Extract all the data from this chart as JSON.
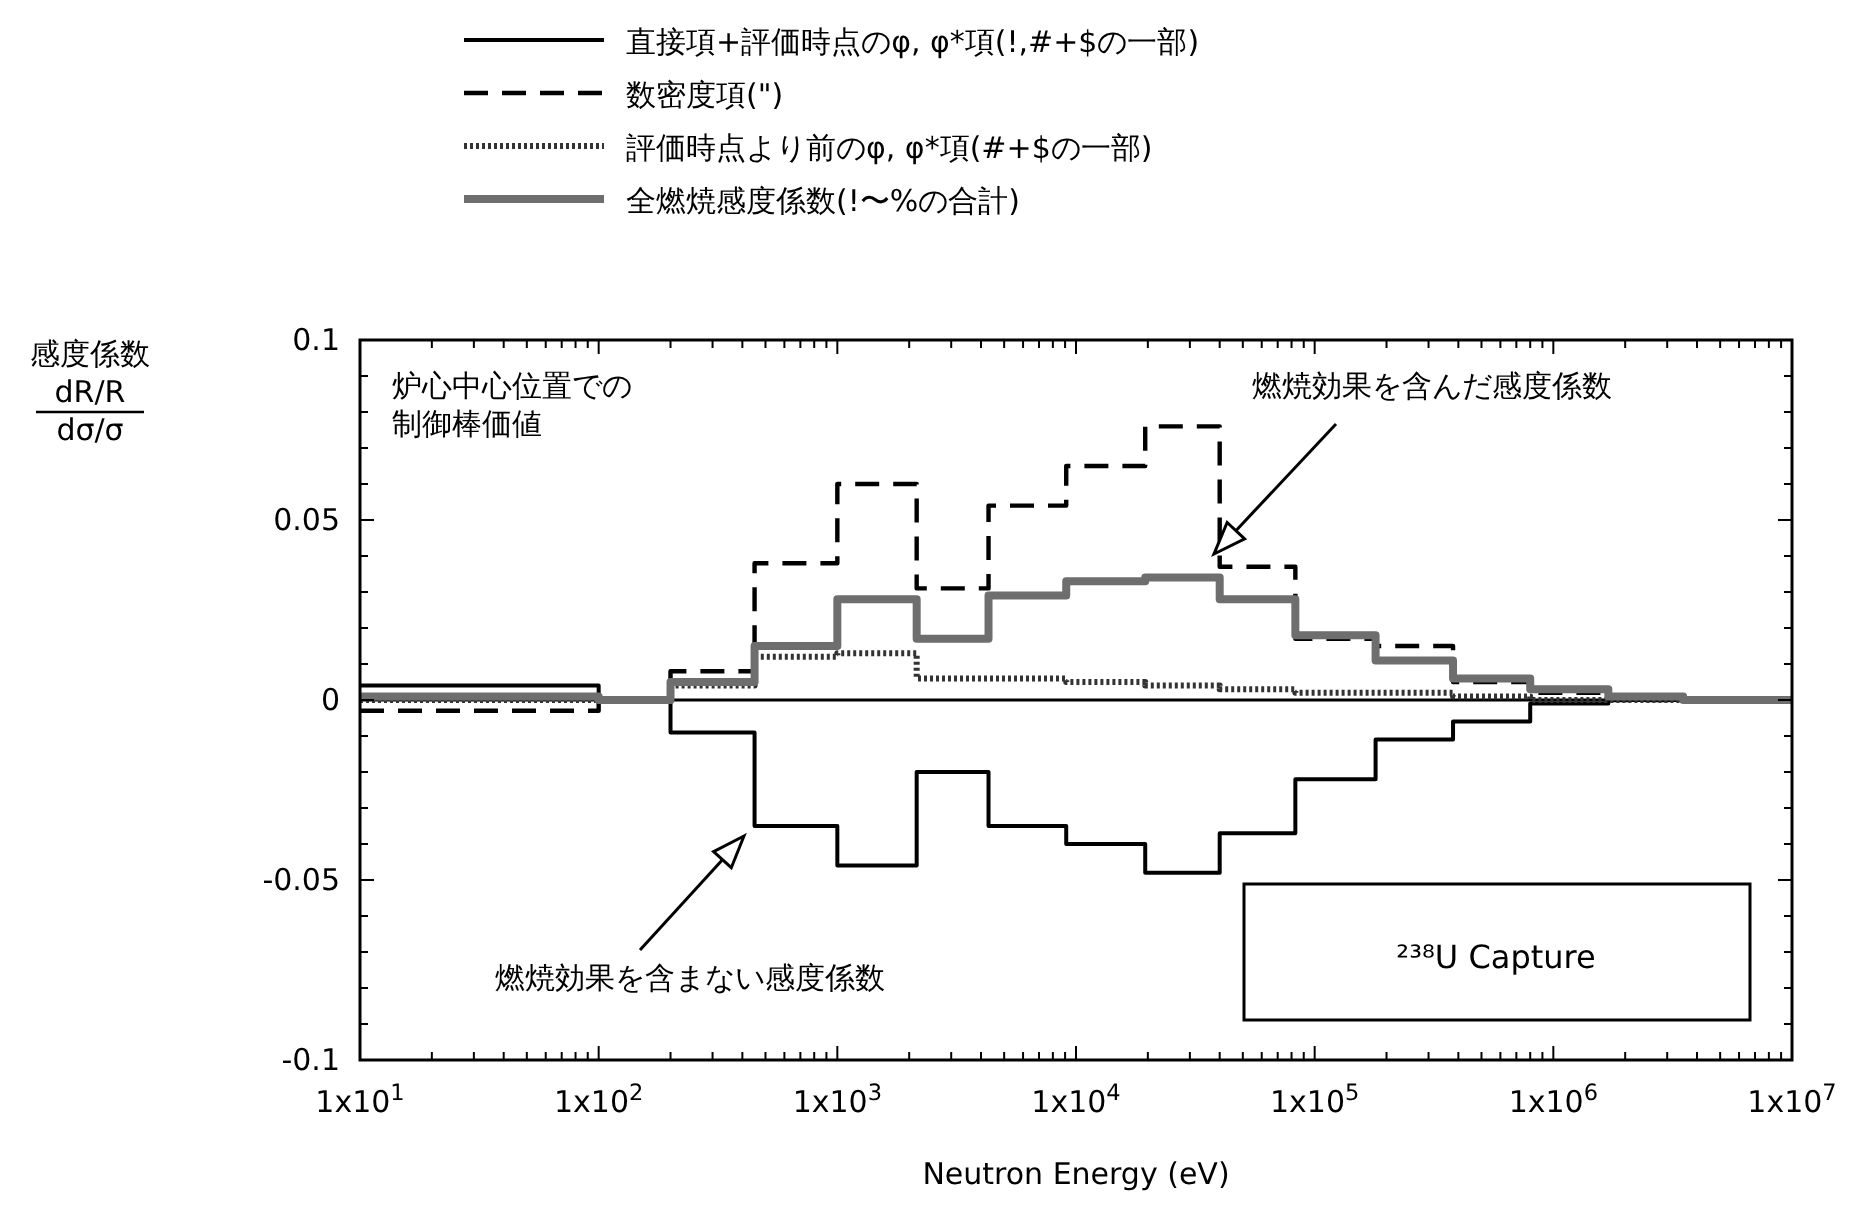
{
  "chart_data": {
    "type": "step",
    "ylabel": "感度係数\ndR/R\ndσ/σ",
    "xlabel": "Neutron Energy (eV)",
    "log": "x",
    "xlim": [
      10,
      10000000
    ],
    "xticks": [
      {
        "value": 10,
        "label": "1x10$^{1}$"
      },
      {
        "value": 100,
        "label": "1x10$^{2}$"
      },
      {
        "value": 1000,
        "label": "1x10$^{3}$"
      },
      {
        "value": 10000,
        "label": "1x10$^{4}$"
      },
      {
        "value": 100000,
        "label": "1x10$^{5}$"
      },
      {
        "value": 1000000,
        "label": "1x10$^{6}$"
      },
      {
        "value": 10000000,
        "label": "1x10$^{7}$"
      }
    ],
    "ylim": [
      -0.1,
      0.1
    ],
    "yticks": [
      {
        "value": -0.1,
        "label": "-0.1"
      },
      {
        "value": -0.05,
        "label": "-0.05"
      },
      0,
      0.05,
      0.1
    ],
    "grid": false,
    "legend": "top",
    "x": [
      10,
      100,
      200,
      450,
      1000,
      2150,
      4300,
      9100,
      19500,
      40000,
      83000,
      180000,
      380000,
      800000,
      1700000,
      3500000,
      10000000
    ],
    "series": [
      {
        "name": "直接項+評価時点のφ, φ*項(!,#+$の一部)",
        "color": "#000000",
        "line_style": "solid",
        "values": [
          0.004,
          0,
          -0.009,
          -0.035,
          -0.046,
          -0.02,
          -0.035,
          -0.04,
          -0.048,
          -0.037,
          -0.022,
          -0.011,
          -0.006,
          -0.001,
          0,
          0,
          0
        ]
      },
      {
        "name": "数密度項(\")",
        "color": "#000000",
        "line_style": "dashed",
        "values": [
          -0.003,
          0,
          0.008,
          0.038,
          0.06,
          0.031,
          0.054,
          0.065,
          0.076,
          0.037,
          0.017,
          0.015,
          0.005,
          0.002,
          0,
          0,
          0
        ]
      },
      {
        "name": "評価時点より前のφ, φ*項(#+$の一部)",
        "color": "#333333",
        "line_style": "dotted",
        "values": [
          0,
          0,
          0.004,
          0.012,
          0.013,
          0.006,
          0.006,
          0.005,
          0.004,
          0.003,
          0.002,
          0.002,
          0.001,
          0,
          0,
          0,
          0
        ]
      },
      {
        "name": "全燃焼感度係数(!〜%の合計)",
        "color": "#6e6e6e",
        "line_style": "solid",
        "values": [
          0.001,
          0,
          0.005,
          0.015,
          0.028,
          0.017,
          0.029,
          0.033,
          0.034,
          0.028,
          0.018,
          0.011,
          0.006,
          0.003,
          0.001,
          0,
          0
        ]
      }
    ],
    "ref_lines": [
      {
        "axis": "y",
        "value": 0,
        "color": "#000000"
      }
    ],
    "annotations": [
      "炉心中心位置での制御棒価値",
      "²³⁸U Capture",
      "燃焼効果を含んだ感度係数",
      "燃焼効果を含まない感度係数"
    ]
  }
}
